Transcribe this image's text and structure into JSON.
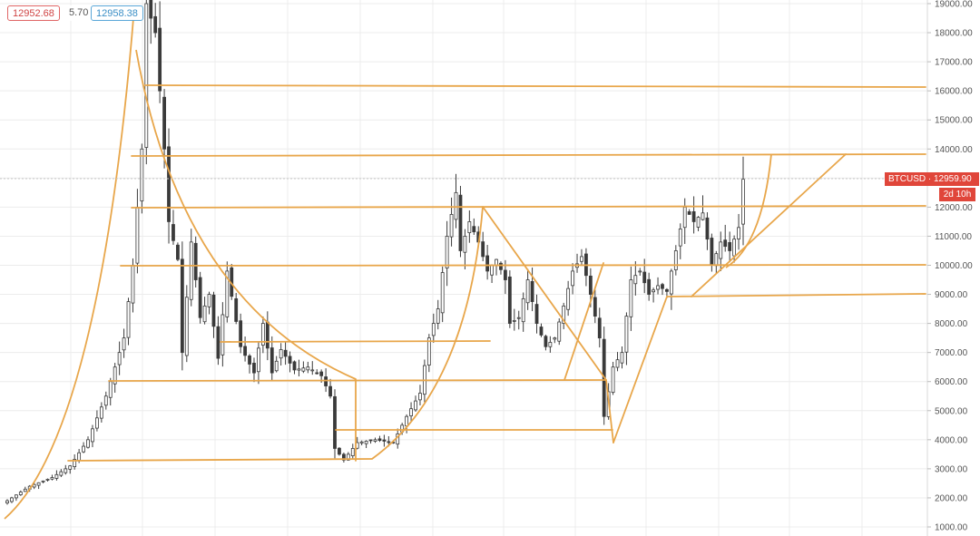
{
  "header": {
    "open_value": "12952.68",
    "change_value": "5.70",
    "close_value": "12958.38"
  },
  "price_tag": {
    "label": "BTCUSD · 12959.90",
    "countdown": "2d 10h"
  },
  "colors": {
    "candle": "#3a3a3a",
    "trendline": "#e8a64a",
    "grid": "#ececec",
    "price_tag": "#e0463a"
  },
  "chart_data": {
    "type": "candlestick",
    "symbol": "BTCUSD",
    "title": "",
    "xlabel": "",
    "ylabel": "",
    "ylim": [
      900,
      19100
    ],
    "y_ticks": [
      "1000.00",
      "2000.00",
      "3000.00",
      "4000.00",
      "5000.00",
      "6000.00",
      "7000.00",
      "8000.00",
      "9000.00",
      "10000.00",
      "11000.00",
      "12000.00",
      "13000.00",
      "14000.00",
      "15000.00",
      "16000.00",
      "17000.00",
      "18000.00",
      "19000.00"
    ],
    "last_price": 12959.9,
    "grid": true,
    "anchor_points": [
      [
        0,
        1900
      ],
      [
        5,
        2400
      ],
      [
        10,
        2700
      ],
      [
        14,
        3100
      ],
      [
        18,
        4000
      ],
      [
        22,
        5500
      ],
      [
        26,
        7500
      ],
      [
        28,
        10000
      ],
      [
        30,
        14000
      ],
      [
        31,
        19000
      ],
      [
        33,
        18000
      ],
      [
        35,
        14000
      ],
      [
        36,
        11500
      ],
      [
        38,
        10200
      ],
      [
        39,
        7000
      ],
      [
        41,
        10800
      ],
      [
        43,
        8200
      ],
      [
        45,
        9000
      ],
      [
        47,
        6800
      ],
      [
        49,
        9800
      ],
      [
        52,
        7200
      ],
      [
        55,
        6300
      ],
      [
        57,
        8000
      ],
      [
        59,
        6300
      ],
      [
        61,
        7100
      ],
      [
        64,
        6400
      ],
      [
        67,
        6500
      ],
      [
        70,
        6200
      ],
      [
        72,
        5500
      ],
      [
        73,
        3700
      ],
      [
        75,
        3300
      ],
      [
        78,
        3900
      ],
      [
        82,
        4000
      ],
      [
        86,
        3900
      ],
      [
        89,
        4800
      ],
      [
        92,
        5600
      ],
      [
        94,
        7500
      ],
      [
        96,
        8500
      ],
      [
        98,
        11000
      ],
      [
        100,
        12500
      ],
      [
        101,
        10500
      ],
      [
        103,
        11500
      ],
      [
        105,
        10800
      ],
      [
        107,
        9800
      ],
      [
        109,
        10200
      ],
      [
        111,
        9500
      ],
      [
        112,
        8000
      ],
      [
        114,
        8200
      ],
      [
        116,
        9500
      ],
      [
        118,
        8000
      ],
      [
        120,
        7200
      ],
      [
        122,
        7500
      ],
      [
        124,
        8600
      ],
      [
        126,
        9800
      ],
      [
        128,
        10300
      ],
      [
        130,
        9000
      ],
      [
        132,
        7500
      ],
      [
        133,
        4800
      ],
      [
        135,
        6500
      ],
      [
        137,
        7000
      ],
      [
        139,
        9500
      ],
      [
        141,
        9800
      ],
      [
        143,
        9000
      ],
      [
        145,
        9300
      ],
      [
        147,
        9100
      ],
      [
        149,
        10500
      ],
      [
        151,
        12000
      ],
      [
        153,
        11500
      ],
      [
        155,
        11800
      ],
      [
        157,
        10000
      ],
      [
        159,
        10800
      ],
      [
        161,
        10500
      ],
      [
        163,
        11300
      ],
      [
        164,
        12959.9
      ]
    ]
  }
}
